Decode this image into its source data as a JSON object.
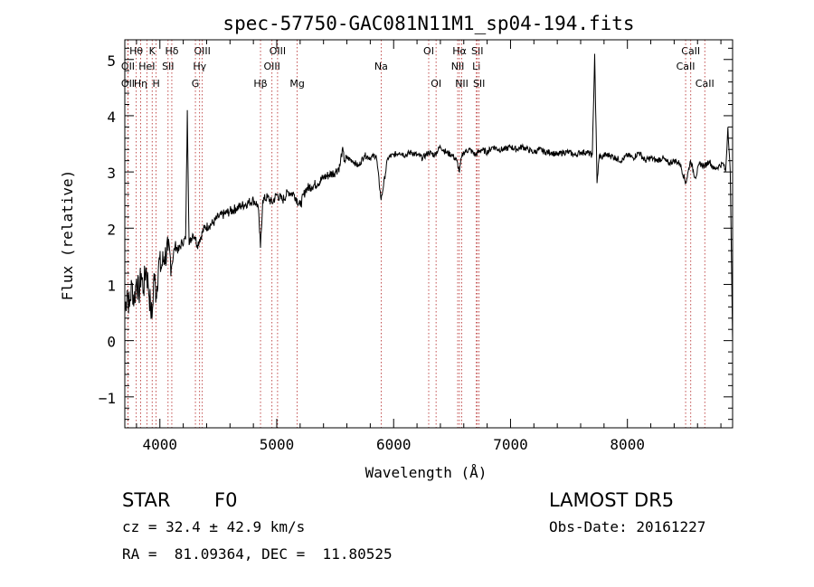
{
  "chart_data": {
    "type": "line",
    "title": "spec-57750-GAC081N11M1_sp04-194.fits",
    "xlabel": "Wavelength (Å)",
    "ylabel": "Flux (relative)",
    "xlim": [
      3700,
      8900
    ],
    "ylim": [
      -1.55,
      5.35
    ],
    "xticks": [
      4000,
      5000,
      6000,
      7000,
      8000
    ],
    "yticks": [
      -1,
      0,
      1,
      2,
      3,
      4,
      5
    ],
    "grid": false,
    "series": [
      {
        "x": [
          3700,
          3720,
          3740,
          3760,
          3780,
          3800,
          3820,
          3840,
          3860,
          3880,
          3900,
          3920,
          3933,
          3950,
          3968,
          3990,
          4010,
          4040,
          4070,
          4102,
          4130,
          4160,
          4190,
          4220,
          4235,
          4250,
          4280,
          4300,
          4320,
          4340,
          4380,
          4420,
          4460,
          4500,
          4550,
          4600,
          4650,
          4700,
          4750,
          4800,
          4840,
          4861,
          4880,
          4920,
          4960,
          5000,
          5050,
          5100,
          5150,
          5200,
          5250,
          5300,
          5350,
          5400,
          5450,
          5500,
          5540,
          5560,
          5580,
          5600,
          5650,
          5700,
          5750,
          5800,
          5850,
          5893,
          5950,
          6000,
          6050,
          6100,
          6150,
          6200,
          6250,
          6300,
          6350,
          6400,
          6450,
          6500,
          6540,
          6563,
          6580,
          6600,
          6650,
          6700,
          6750,
          6800,
          6850,
          6900,
          6950,
          7000,
          7050,
          7100,
          7150,
          7200,
          7250,
          7300,
          7350,
          7400,
          7450,
          7500,
          7550,
          7600,
          7650,
          7700,
          7720,
          7740,
          7760,
          7780,
          7800,
          7850,
          7900,
          7950,
          8000,
          8050,
          8100,
          8150,
          8200,
          8250,
          8300,
          8350,
          8400,
          8450,
          8500,
          8540,
          8580,
          8620,
          8660,
          8700,
          8740,
          8780,
          8820,
          8840,
          8860,
          8880,
          8900
        ],
        "values": [
          0.5,
          0.9,
          0.6,
          1.0,
          0.7,
          1.1,
          0.8,
          1.2,
          0.9,
          1.3,
          1.0,
          0.6,
          0.4,
          1.2,
          0.8,
          1.4,
          1.3,
          1.5,
          1.6,
          1.35,
          1.7,
          1.6,
          1.75,
          1.8,
          4.1,
          1.7,
          1.9,
          1.85,
          1.7,
          1.8,
          2.0,
          2.05,
          2.1,
          2.2,
          2.25,
          2.3,
          2.35,
          2.4,
          2.45,
          2.5,
          2.4,
          1.65,
          2.5,
          2.55,
          2.45,
          2.6,
          2.5,
          2.65,
          2.6,
          2.4,
          2.7,
          2.75,
          2.8,
          2.9,
          2.95,
          3.0,
          3.1,
          3.4,
          3.2,
          3.25,
          3.2,
          3.1,
          3.3,
          3.25,
          3.3,
          2.5,
          3.25,
          3.3,
          3.35,
          3.3,
          3.35,
          3.3,
          3.25,
          3.35,
          3.3,
          3.45,
          3.35,
          3.3,
          3.2,
          3.0,
          3.25,
          3.35,
          3.4,
          3.3,
          3.4,
          3.35,
          3.45,
          3.4,
          3.4,
          3.45,
          3.4,
          3.45,
          3.4,
          3.35,
          3.4,
          3.35,
          3.35,
          3.3,
          3.35,
          3.35,
          3.3,
          3.35,
          3.35,
          3.3,
          5.1,
          2.8,
          3.3,
          3.25,
          3.3,
          3.3,
          3.25,
          3.2,
          3.3,
          3.25,
          3.35,
          3.2,
          3.25,
          3.2,
          3.25,
          3.15,
          3.2,
          3.15,
          2.8,
          3.2,
          2.9,
          3.15,
          3.1,
          3.2,
          3.05,
          3.1,
          3.15,
          3.0,
          3.8,
          3.0,
          0.0
        ]
      }
    ],
    "lines": [
      {
        "label": "Hθ",
        "x": 3798,
        "row": 1
      },
      {
        "label": "OII",
        "x": 3727,
        "row": 2
      },
      {
        "label": "OII",
        "x": 3727,
        "row": 3
      },
      {
        "label": "Hη",
        "x": 3835,
        "row": 3
      },
      {
        "label": "HeI",
        "x": 3889,
        "row": 2
      },
      {
        "label": "K",
        "x": 3934,
        "row": 1
      },
      {
        "label": "H",
        "x": 3968,
        "row": 3
      },
      {
        "label": "SII",
        "x": 4070,
        "row": 2
      },
      {
        "label": "Hδ",
        "x": 4102,
        "row": 1
      },
      {
        "label": "OIII",
        "x": 4363,
        "row": 1
      },
      {
        "label": "Hγ",
        "x": 4340,
        "row": 2
      },
      {
        "label": "G",
        "x": 4304,
        "row": 3
      },
      {
        "label": "Hβ",
        "x": 4861,
        "row": 3
      },
      {
        "label": "OIII",
        "x": 5007,
        "row": 1
      },
      {
        "label": "OIII",
        "x": 4959,
        "row": 2
      },
      {
        "label": "Mg",
        "x": 5175,
        "row": 3
      },
      {
        "label": "Na",
        "x": 5893,
        "row": 2
      },
      {
        "label": "OI",
        "x": 6300,
        "row": 1
      },
      {
        "label": "OI",
        "x": 6363,
        "row": 3
      },
      {
        "label": "Hα",
        "x": 6563,
        "row": 1
      },
      {
        "label": "NII",
        "x": 6548,
        "row": 2
      },
      {
        "label": "NII",
        "x": 6583,
        "row": 3
      },
      {
        "label": "SII",
        "x": 6716,
        "row": 1
      },
      {
        "label": "Li",
        "x": 6708,
        "row": 2
      },
      {
        "label": "SII",
        "x": 6731,
        "row": 3
      },
      {
        "label": "CaII",
        "x": 8542,
        "row": 1
      },
      {
        "label": "CaII",
        "x": 8498,
        "row": 2
      },
      {
        "label": "CaII",
        "x": 8662,
        "row": 3
      }
    ],
    "line_color": "#b22222",
    "spectrum_color": "#000000"
  },
  "info": {
    "object_class": "STAR",
    "subclass": "F0",
    "survey": "LAMOST DR5",
    "redshift": "cz = 32.4 ± 42.9 km/s",
    "obs_date": "Obs-Date: 20161227",
    "coords": "RA =  81.09364, DEC =  11.80525"
  }
}
